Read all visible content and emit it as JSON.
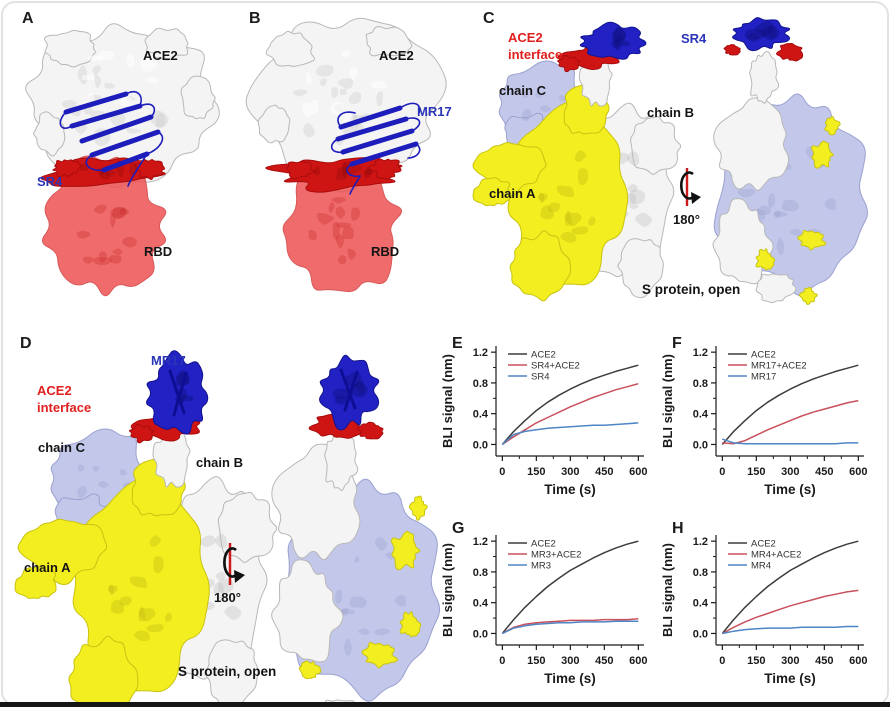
{
  "panels": {
    "A": {
      "label": "A",
      "ace2": "ACE2",
      "nanobody": "SR4",
      "rbd": "RBD"
    },
    "B": {
      "label": "B",
      "ace2": "ACE2",
      "nanobody": "MR17",
      "rbd": "RBD"
    },
    "C": {
      "label": "C",
      "interface": "ACE2\ninterface",
      "nanobody": "SR4",
      "chain_a": "chain A",
      "chain_b": "chain B",
      "chain_c": "chain C",
      "rotation": "180°",
      "caption": "S protein, open"
    },
    "D": {
      "label": "D",
      "interface": "ACE2\ninterface",
      "nanobody": "MR17",
      "chain_a": "chain A",
      "chain_b": "chain B",
      "chain_c": "chain C",
      "rotation": "180°",
      "caption": "S protein, open"
    },
    "E": {
      "label": "E"
    },
    "F": {
      "label": "F"
    },
    "G": {
      "label": "G"
    },
    "H": {
      "label": "H"
    }
  },
  "colors": {
    "nanobody_blue": "#2121c4",
    "label_blue": "#2a35b8",
    "label_red": "#e0201f",
    "rbd_red": "#ee5353",
    "interface_red": "#cf1414",
    "chain_yellow": "#f2ee20",
    "chain_white": "#f4f4f4",
    "chain_lavender": "#c3c8ea",
    "axis_black": "#1a1a1a"
  },
  "chart_data": [
    {
      "id": "E",
      "type": "line",
      "xlabel": "Time (s)",
      "ylabel": "BLI signal (nm)",
      "xlim": [
        0,
        600
      ],
      "ylim": [
        0.0,
        1.2
      ],
      "legend_position": "top-left",
      "grid": false,
      "xticks": [
        0,
        150,
        300,
        450,
        600
      ],
      "yticks": [
        0.0,
        0.4,
        0.8,
        1.2
      ],
      "x": [
        0,
        50,
        100,
        150,
        200,
        250,
        300,
        350,
        400,
        450,
        500,
        550,
        600
      ],
      "series": [
        {
          "name": "ACE2",
          "color": "#3d3d3d",
          "values": [
            0,
            0.17,
            0.31,
            0.44,
            0.55,
            0.64,
            0.72,
            0.79,
            0.85,
            0.9,
            0.95,
            0.99,
            1.03
          ]
        },
        {
          "name": "SR4+ACE2",
          "color": "#c9515c",
          "values": [
            0,
            0.1,
            0.19,
            0.28,
            0.35,
            0.42,
            0.49,
            0.55,
            0.61,
            0.66,
            0.71,
            0.75,
            0.79
          ]
        },
        {
          "name": "SR4",
          "color": "#4e85c5",
          "values": [
            0,
            0.13,
            0.17,
            0.19,
            0.21,
            0.22,
            0.23,
            0.24,
            0.25,
            0.25,
            0.26,
            0.27,
            0.28
          ]
        }
      ]
    },
    {
      "id": "F",
      "type": "line",
      "xlabel": "Time (s)",
      "ylabel": "BLI signal (nm)",
      "xlim": [
        0,
        600
      ],
      "ylim": [
        0.0,
        1.2
      ],
      "legend_position": "top-left",
      "grid": false,
      "xticks": [
        0,
        150,
        300,
        450,
        600
      ],
      "yticks": [
        0.0,
        0.4,
        0.8,
        1.2
      ],
      "x": [
        0,
        50,
        100,
        150,
        200,
        250,
        300,
        350,
        400,
        450,
        500,
        550,
        600
      ],
      "series": [
        {
          "name": "ACE2",
          "color": "#3d3d3d",
          "values": [
            0,
            0.17,
            0.31,
            0.44,
            0.55,
            0.64,
            0.72,
            0.79,
            0.85,
            0.9,
            0.95,
            0.99,
            1.03
          ]
        },
        {
          "name": "MR17+ACE2",
          "color": "#c9515c",
          "values": [
            0.02,
            0.01,
            0.05,
            0.12,
            0.19,
            0.25,
            0.31,
            0.37,
            0.42,
            0.46,
            0.5,
            0.54,
            0.57
          ]
        },
        {
          "name": "MR17",
          "color": "#4e85c5",
          "values": [
            0.07,
            0.02,
            0.01,
            0.01,
            0.01,
            0.01,
            0.01,
            0.01,
            0.01,
            0.01,
            0.01,
            0.02,
            0.02
          ]
        }
      ]
    },
    {
      "id": "G",
      "type": "line",
      "xlabel": "Time (s)",
      "ylabel": "BLI signal (nm)",
      "xlim": [
        0,
        600
      ],
      "ylim": [
        0.0,
        1.2
      ],
      "legend_position": "top-left",
      "grid": false,
      "xticks": [
        0,
        150,
        300,
        450,
        600
      ],
      "yticks": [
        0.0,
        0.4,
        0.8,
        1.2
      ],
      "x": [
        0,
        50,
        100,
        150,
        200,
        250,
        300,
        350,
        400,
        450,
        500,
        550,
        600
      ],
      "series": [
        {
          "name": "ACE2",
          "color": "#3d3d3d",
          "values": [
            0,
            0.18,
            0.34,
            0.48,
            0.61,
            0.72,
            0.82,
            0.9,
            0.98,
            1.05,
            1.11,
            1.16,
            1.2
          ]
        },
        {
          "name": "MR3+ACE2",
          "color": "#c9515c",
          "values": [
            0,
            0.08,
            0.12,
            0.14,
            0.15,
            0.16,
            0.17,
            0.17,
            0.17,
            0.18,
            0.18,
            0.18,
            0.19
          ]
        },
        {
          "name": "MR3",
          "color": "#4e85c5",
          "values": [
            0,
            0.07,
            0.1,
            0.12,
            0.13,
            0.14,
            0.14,
            0.15,
            0.15,
            0.15,
            0.16,
            0.16,
            0.16
          ]
        }
      ]
    },
    {
      "id": "H",
      "type": "line",
      "xlabel": "Time (s)",
      "ylabel": "BLI signal (nm)",
      "xlim": [
        0,
        600
      ],
      "ylim": [
        0.0,
        1.2
      ],
      "legend_position": "top-left",
      "grid": false,
      "xticks": [
        0,
        150,
        300,
        450,
        600
      ],
      "yticks": [
        0.0,
        0.4,
        0.8,
        1.2
      ],
      "x": [
        0,
        50,
        100,
        150,
        200,
        250,
        300,
        350,
        400,
        450,
        500,
        550,
        600
      ],
      "series": [
        {
          "name": "ACE2",
          "color": "#3d3d3d",
          "values": [
            0,
            0.18,
            0.34,
            0.48,
            0.61,
            0.72,
            0.82,
            0.9,
            0.98,
            1.05,
            1.11,
            1.16,
            1.2
          ]
        },
        {
          "name": "MR4+ACE2",
          "color": "#c9515c",
          "values": [
            0,
            0.08,
            0.15,
            0.21,
            0.26,
            0.31,
            0.36,
            0.4,
            0.44,
            0.48,
            0.51,
            0.54,
            0.56
          ]
        },
        {
          "name": "MR4",
          "color": "#4e85c5",
          "values": [
            0,
            0.03,
            0.05,
            0.06,
            0.07,
            0.07,
            0.07,
            0.08,
            0.08,
            0.08,
            0.08,
            0.09,
            0.09
          ]
        }
      ]
    }
  ]
}
